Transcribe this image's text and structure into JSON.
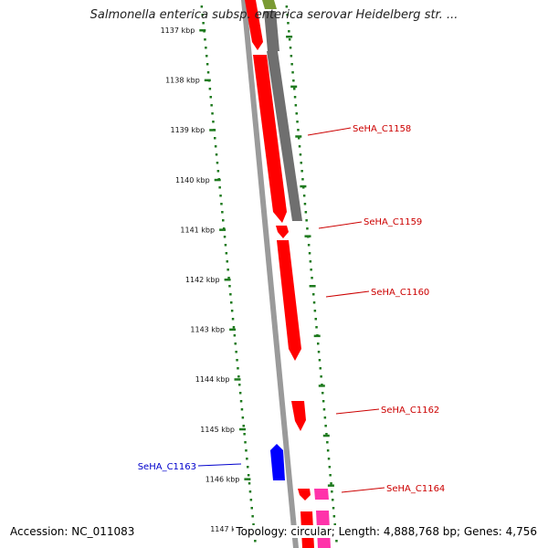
{
  "title": "Salmonella enterica subsp. enterica serovar Heidelberg str. ...",
  "footer": {
    "accession": "Accession: NC_011083",
    "summary": "Topology: circular; Length: 4,888,768 bp; Genes: 4,756"
  },
  "colors": {
    "background": "#ffffff",
    "backbone": "#9a9a9a",
    "tick": "#1e7a1e",
    "forward_gene": "#ff0000",
    "reverse_gene": "#0000ff",
    "other_gene": "#707070",
    "pink_gene": "#ff33aa",
    "label_forward": "#cc0000",
    "label_reverse": "#0000cc"
  },
  "ticks": [
    {
      "label": "1137 kbp"
    },
    {
      "label": "1138 kbp"
    },
    {
      "label": "1139 kbp"
    },
    {
      "label": "1140 kbp"
    },
    {
      "label": "1141 kbp"
    },
    {
      "label": "1142 kbp"
    },
    {
      "label": "1143 kbp"
    },
    {
      "label": "1144 kbp"
    },
    {
      "label": "1145 kbp"
    },
    {
      "label": "1146 kbp"
    },
    {
      "label": "1147 kbp"
    }
  ],
  "genes": [
    {
      "name": "SeHA_C1158",
      "strand": "forward",
      "color": "#cc0000"
    },
    {
      "name": "SeHA_C1159",
      "strand": "forward",
      "color": "#cc0000"
    },
    {
      "name": "SeHA_C1160",
      "strand": "forward",
      "color": "#cc0000"
    },
    {
      "name": "SeHA_C1162",
      "strand": "forward",
      "color": "#cc0000"
    },
    {
      "name": "SeHA_C1163",
      "strand": "reverse",
      "color": "#0000cc"
    },
    {
      "name": "SeHA_C1164",
      "strand": "forward",
      "color": "#cc0000"
    }
  ]
}
